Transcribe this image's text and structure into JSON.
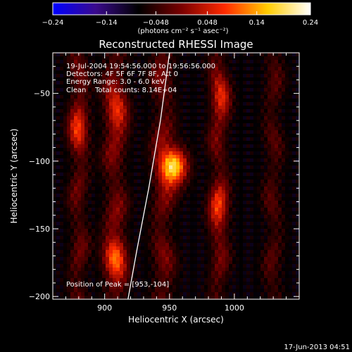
{
  "chart_data": {
    "type": "heatmap",
    "title": "Reconstructed RHESSI Image",
    "xlabel": "Heliocentric X (arcsec)",
    "ylabel": "Heliocentric Y (arcsec)",
    "xlim": [
      860,
      1050
    ],
    "ylim": [
      -202,
      -20
    ],
    "x_ticks": [
      900,
      950,
      1000
    ],
    "y_ticks": [
      -50,
      -100,
      -150,
      -200
    ],
    "x_tick_labels": [
      "900",
      "950",
      "1000"
    ],
    "y_tick_labels": [
      "−50",
      "−100",
      "−150",
      "−200"
    ],
    "colorbar": {
      "min": -0.24,
      "max": 0.24,
      "ticks": [
        -0.24,
        -0.14,
        -0.048,
        0.048,
        0.14,
        0.24
      ],
      "tick_labels": [
        "−0.24",
        "−0.14",
        "−0.048",
        "0.048",
        "0.14",
        "0.24"
      ],
      "units_label": "(photons cm⁻² s⁻¹ asec⁻²)",
      "colors": [
        "#0000ff",
        "#3a0a8c",
        "#000000",
        "#7a0000",
        "#ff2a00",
        "#ffcc00",
        "#ffffff"
      ]
    },
    "annotations": [
      "19-Jul-2004 19:54:56.000 to 19:56:56.000",
      "Detectors: 4F 5F 6F 7F 8F, Att 0",
      "Energy Range: 3.0 - 6.0 keV",
      "Clean    Total counts: 8.14E+04"
    ],
    "peak_label": "Position of Peak = [953,-104]",
    "peak": {
      "x": 953,
      "y": -104,
      "value": 0.24
    },
    "sources": [
      {
        "x": 953,
        "y": -104,
        "amp": 0.26,
        "sx": 7,
        "sy": 9
      },
      {
        "x": 908,
        "y": -170,
        "amp": 0.13,
        "sx": 6,
        "sy": 10
      },
      {
        "x": 910,
        "y": -65,
        "amp": 0.1,
        "sx": 6,
        "sy": 10
      },
      {
        "x": 880,
        "y": -75,
        "amp": 0.1,
        "sx": 5,
        "sy": 12
      },
      {
        "x": 990,
        "y": -55,
        "amp": 0.1,
        "sx": 5,
        "sy": 10
      },
      {
        "x": 988,
        "y": -135,
        "amp": 0.1,
        "sx": 5,
        "sy": 12
      }
    ],
    "ridges": [
      {
        "x": 880,
        "amp": 0.07,
        "sx": 5
      },
      {
        "x": 908,
        "amp": 0.085,
        "sx": 6
      },
      {
        "x": 945,
        "amp": 0.08,
        "sx": 6
      },
      {
        "x": 988,
        "amp": 0.075,
        "sx": 5
      },
      {
        "x": 1030,
        "amp": 0.055,
        "sx": 5
      }
    ],
    "limb_curve": [
      {
        "x": 950,
        "y": -20
      },
      {
        "x": 943,
        "y": -70
      },
      {
        "x": 934,
        "y": -120
      },
      {
        "x": 925,
        "y": -165
      },
      {
        "x": 918,
        "y": -202
      }
    ],
    "grid": false,
    "legend": "none"
  },
  "footer_timestamp": "17-Jun-2013 04:51"
}
